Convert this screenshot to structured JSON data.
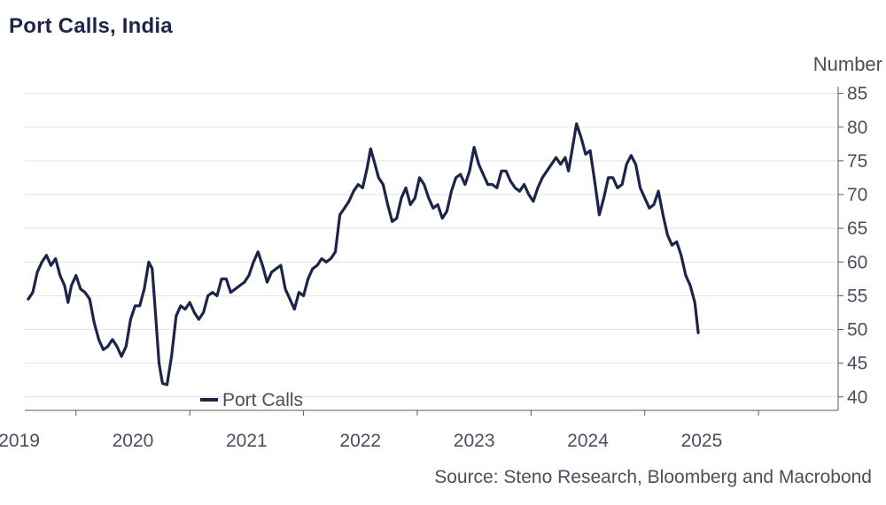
{
  "chart_data": {
    "type": "line",
    "title": "Port Calls, India",
    "source": "Source: Steno Research, Bloomberg and Macrobond",
    "y_unit": "Number",
    "ylim": [
      38,
      86
    ],
    "y_ticks": [
      40,
      45,
      50,
      55,
      60,
      65,
      70,
      75,
      80,
      85
    ],
    "x_range": [
      2018.55,
      2025.7
    ],
    "x_tick_labels": [
      "2019",
      "2020",
      "2021",
      "2022",
      "2023",
      "2024",
      "2025"
    ],
    "x_boundaries": [
      2019,
      2020,
      2021,
      2022,
      2023,
      2024,
      2025
    ],
    "grid": true,
    "legend_position": "bottom-left",
    "colors": {
      "series": "#1c2449",
      "grid": "#e2e2e2",
      "axis": "#555a66"
    },
    "series": [
      {
        "name": "Port Calls",
        "points": [
          [
            2018.58,
            54.5
          ],
          [
            2018.62,
            55.5
          ],
          [
            2018.66,
            58.5
          ],
          [
            2018.7,
            60.0
          ],
          [
            2018.74,
            61.0
          ],
          [
            2018.78,
            59.5
          ],
          [
            2018.82,
            60.5
          ],
          [
            2018.86,
            58.0
          ],
          [
            2018.9,
            56.5
          ],
          [
            2018.93,
            54.0
          ],
          [
            2018.96,
            56.5
          ],
          [
            2019.0,
            58.0
          ],
          [
            2019.04,
            56.0
          ],
          [
            2019.08,
            55.5
          ],
          [
            2019.12,
            54.5
          ],
          [
            2019.16,
            51.0
          ],
          [
            2019.2,
            48.5
          ],
          [
            2019.24,
            47.0
          ],
          [
            2019.28,
            47.5
          ],
          [
            2019.32,
            48.5
          ],
          [
            2019.36,
            47.5
          ],
          [
            2019.4,
            46.0
          ],
          [
            2019.44,
            47.5
          ],
          [
            2019.48,
            51.5
          ],
          [
            2019.52,
            53.5
          ],
          [
            2019.56,
            53.5
          ],
          [
            2019.6,
            56.0
          ],
          [
            2019.64,
            60.0
          ],
          [
            2019.67,
            59.0
          ],
          [
            2019.7,
            52.0
          ],
          [
            2019.73,
            45.0
          ],
          [
            2019.76,
            42.0
          ],
          [
            2019.8,
            41.8
          ],
          [
            2019.84,
            46.0
          ],
          [
            2019.88,
            52.0
          ],
          [
            2019.92,
            53.5
          ],
          [
            2019.96,
            53.0
          ],
          [
            2020.0,
            54.0
          ],
          [
            2020.04,
            52.5
          ],
          [
            2020.08,
            51.5
          ],
          [
            2020.12,
            52.5
          ],
          [
            2020.16,
            55.0
          ],
          [
            2020.2,
            55.5
          ],
          [
            2020.24,
            55.0
          ],
          [
            2020.28,
            57.5
          ],
          [
            2020.32,
            57.5
          ],
          [
            2020.36,
            55.5
          ],
          [
            2020.4,
            56.0
          ],
          [
            2020.44,
            56.5
          ],
          [
            2020.48,
            57.0
          ],
          [
            2020.52,
            58.0
          ],
          [
            2020.56,
            60.0
          ],
          [
            2020.6,
            61.5
          ],
          [
            2020.64,
            59.5
          ],
          [
            2020.68,
            57.0
          ],
          [
            2020.72,
            58.5
          ],
          [
            2020.76,
            59.0
          ],
          [
            2020.8,
            59.5
          ],
          [
            2020.84,
            56.0
          ],
          [
            2020.88,
            54.5
          ],
          [
            2020.92,
            53.0
          ],
          [
            2020.96,
            55.5
          ],
          [
            2021.0,
            55.0
          ],
          [
            2021.04,
            57.5
          ],
          [
            2021.08,
            59.0
          ],
          [
            2021.12,
            59.5
          ],
          [
            2021.16,
            60.5
          ],
          [
            2021.2,
            60.0
          ],
          [
            2021.24,
            60.5
          ],
          [
            2021.28,
            61.5
          ],
          [
            2021.32,
            67.0
          ],
          [
            2021.36,
            68.0
          ],
          [
            2021.4,
            69.0
          ],
          [
            2021.44,
            70.5
          ],
          [
            2021.48,
            71.5
          ],
          [
            2021.52,
            71.0
          ],
          [
            2021.56,
            74.0
          ],
          [
            2021.59,
            76.8
          ],
          [
            2021.62,
            75.0
          ],
          [
            2021.66,
            72.5
          ],
          [
            2021.7,
            71.5
          ],
          [
            2021.74,
            68.5
          ],
          [
            2021.78,
            66.0
          ],
          [
            2021.82,
            66.5
          ],
          [
            2021.86,
            69.5
          ],
          [
            2021.9,
            71.0
          ],
          [
            2021.94,
            68.5
          ],
          [
            2021.98,
            69.5
          ],
          [
            2022.02,
            72.5
          ],
          [
            2022.06,
            71.5
          ],
          [
            2022.1,
            69.5
          ],
          [
            2022.14,
            68.0
          ],
          [
            2022.18,
            68.5
          ],
          [
            2022.22,
            66.5
          ],
          [
            2022.26,
            67.5
          ],
          [
            2022.3,
            70.5
          ],
          [
            2022.34,
            72.5
          ],
          [
            2022.38,
            73.0
          ],
          [
            2022.42,
            71.5
          ],
          [
            2022.46,
            73.5
          ],
          [
            2022.5,
            77.0
          ],
          [
            2022.54,
            74.5
          ],
          [
            2022.58,
            73.0
          ],
          [
            2022.62,
            71.5
          ],
          [
            2022.66,
            71.5
          ],
          [
            2022.7,
            71.0
          ],
          [
            2022.74,
            73.5
          ],
          [
            2022.78,
            73.5
          ],
          [
            2022.82,
            72.0
          ],
          [
            2022.86,
            71.0
          ],
          [
            2022.9,
            70.5
          ],
          [
            2022.94,
            71.5
          ],
          [
            2022.98,
            70.0
          ],
          [
            2023.02,
            69.0
          ],
          [
            2023.06,
            71.0
          ],
          [
            2023.1,
            72.5
          ],
          [
            2023.14,
            73.5
          ],
          [
            2023.18,
            74.5
          ],
          [
            2023.22,
            75.5
          ],
          [
            2023.26,
            74.5
          ],
          [
            2023.3,
            75.5
          ],
          [
            2023.33,
            73.5
          ],
          [
            2023.36,
            76.5
          ],
          [
            2023.4,
            80.5
          ],
          [
            2023.44,
            78.5
          ],
          [
            2023.48,
            76.0
          ],
          [
            2023.52,
            76.5
          ],
          [
            2023.56,
            72.0
          ],
          [
            2023.6,
            67.0
          ],
          [
            2023.64,
            69.5
          ],
          [
            2023.68,
            72.5
          ],
          [
            2023.72,
            72.5
          ],
          [
            2023.76,
            71.0
          ],
          [
            2023.8,
            71.5
          ],
          [
            2023.84,
            74.5
          ],
          [
            2023.88,
            75.8
          ],
          [
            2023.92,
            74.5
          ],
          [
            2023.96,
            71.0
          ],
          [
            2024.0,
            69.5
          ],
          [
            2024.04,
            68.0
          ],
          [
            2024.08,
            68.5
          ],
          [
            2024.12,
            70.5
          ],
          [
            2024.16,
            67.0
          ],
          [
            2024.2,
            64.0
          ],
          [
            2024.24,
            62.5
          ],
          [
            2024.28,
            63.0
          ],
          [
            2024.32,
            61.0
          ],
          [
            2024.36,
            58.0
          ],
          [
            2024.4,
            56.5
          ],
          [
            2024.44,
            54.0
          ],
          [
            2024.47,
            49.5
          ]
        ]
      }
    ]
  }
}
